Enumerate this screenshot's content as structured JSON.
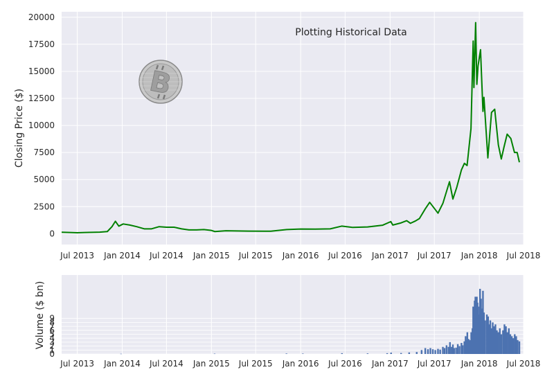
{
  "chart_data": [
    {
      "type": "line",
      "annotation": "Plotting Historical Data",
      "xlabel": "",
      "ylabel": "Closing Price ($)",
      "xlim": [
        "2013-04-28",
        "2018-07-01"
      ],
      "ylim": [
        -1000,
        20500
      ],
      "yticks": [
        0,
        2500,
        5000,
        7500,
        10000,
        12500,
        15000,
        17500,
        20000
      ],
      "xticks": [
        {
          "date": "2013-07-01",
          "label": "Jul 2013"
        },
        {
          "date": "2014-01-01",
          "label": "Jan 2014"
        },
        {
          "date": "2014-07-01",
          "label": "Jul 2014"
        },
        {
          "date": "2015-01-01",
          "label": "Jan 2015"
        },
        {
          "date": "2015-07-01",
          "label": "Jul 2015"
        },
        {
          "date": "2016-01-01",
          "label": "Jan 2016"
        },
        {
          "date": "2016-07-01",
          "label": "Jul 2016"
        },
        {
          "date": "2017-01-01",
          "label": "Jan 2017"
        },
        {
          "date": "2017-07-01",
          "label": "Jul 2017"
        },
        {
          "date": "2018-01-01",
          "label": "Jan 2018"
        },
        {
          "date": "2018-07-01",
          "label": "Jul 2018"
        }
      ],
      "grid": true,
      "line_color": "#008000",
      "background": "#EAEAF2",
      "logo": "bitcoin-coin-icon",
      "series": [
        {
          "x": [
            "2013-04-28",
            "2013-06-01",
            "2013-07-01",
            "2013-08-01",
            "2013-09-01",
            "2013-10-01",
            "2013-11-01",
            "2013-11-20",
            "2013-12-04",
            "2013-12-18",
            "2014-01-05",
            "2014-02-01",
            "2014-03-01",
            "2014-04-01",
            "2014-05-01",
            "2014-06-01",
            "2014-07-01",
            "2014-08-01",
            "2014-09-01",
            "2014-10-01",
            "2014-11-01",
            "2014-12-01",
            "2015-01-01",
            "2015-01-15",
            "2015-03-01",
            "2015-06-01",
            "2015-09-01",
            "2015-11-05",
            "2016-01-01",
            "2016-03-01",
            "2016-05-01",
            "2016-06-17",
            "2016-08-01",
            "2016-10-01",
            "2016-12-01",
            "2017-01-04",
            "2017-01-12",
            "2017-02-15",
            "2017-03-10",
            "2017-03-25",
            "2017-04-15",
            "2017-05-01",
            "2017-05-25",
            "2017-06-12",
            "2017-07-16",
            "2017-08-05",
            "2017-09-01",
            "2017-09-15",
            "2017-10-01",
            "2017-10-20",
            "2017-11-01",
            "2017-11-12",
            "2017-11-28",
            "2017-12-07",
            "2017-12-10",
            "2017-12-17",
            "2017-12-22",
            "2017-12-27",
            "2018-01-06",
            "2018-01-16",
            "2018-01-20",
            "2018-02-05",
            "2018-02-20",
            "2018-03-05",
            "2018-03-20",
            "2018-04-01",
            "2018-04-12",
            "2018-04-25",
            "2018-05-10",
            "2018-05-25",
            "2018-06-05",
            "2018-06-14"
          ],
          "values": [
            135,
            110,
            90,
            110,
            130,
            140,
            200,
            650,
            1150,
            700,
            900,
            800,
            650,
            450,
            450,
            650,
            600,
            600,
            450,
            350,
            350,
            380,
            300,
            200,
            270,
            240,
            230,
            380,
            430,
            420,
            450,
            700,
            580,
            620,
            780,
            1120,
            800,
            1000,
            1200,
            960,
            1180,
            1400,
            2300,
            2900,
            1900,
            2800,
            4800,
            3200,
            4300,
            5900,
            6500,
            6300,
            9700,
            17800,
            13500,
            19500,
            13800,
            15500,
            17000,
            11300,
            12600,
            7000,
            11200,
            11500,
            8200,
            6900,
            8000,
            9200,
            8800,
            7500,
            7500,
            6600
          ]
        }
      ]
    },
    {
      "type": "bar",
      "xlabel": "",
      "ylabel": "Volume ($ bn)",
      "ylim": [
        0,
        20
      ],
      "yticks": [
        0,
        1,
        2,
        3,
        4,
        5,
        6,
        7,
        8,
        9
      ],
      "ytick_labels": [
        "0",
        "1",
        "2",
        "3",
        "4",
        "5",
        "6",
        "7",
        "8",
        "9"
      ],
      "xticks": [
        {
          "date": "2013-07-01",
          "label": "Jul 2013"
        },
        {
          "date": "2014-01-01",
          "label": "Jan 2014"
        },
        {
          "date": "2014-07-01",
          "label": "Jul 2014"
        },
        {
          "date": "2015-01-01",
          "label": "Jan 2015"
        },
        {
          "date": "2015-07-01",
          "label": "Jul 2015"
        },
        {
          "date": "2016-01-01",
          "label": "Jan 2016"
        },
        {
          "date": "2016-07-01",
          "label": "Jul 2016"
        },
        {
          "date": "2017-01-01",
          "label": "Jan 2017"
        },
        {
          "date": "2017-07-01",
          "label": "Jul 2017"
        },
        {
          "date": "2018-01-01",
          "label": "Jan 2018"
        },
        {
          "date": "2018-07-01",
          "label": "Jul 2018"
        }
      ],
      "grid": true,
      "bar_color": "#4C72B0",
      "background": "#EAEAF2",
      "series": [
        {
          "x": [
            "2013-12-27",
            "2015-01-14",
            "2015-11-04",
            "2016-01-10",
            "2016-06-18",
            "2016-10-01",
            "2016-12-20",
            "2017-01-05",
            "2017-02-15",
            "2017-03-20",
            "2017-04-20",
            "2017-05-10",
            "2017-05-25",
            "2017-06-05",
            "2017-06-15",
            "2017-06-25",
            "2017-07-05",
            "2017-07-16",
            "2017-07-25",
            "2017-08-05",
            "2017-08-12",
            "2017-08-20",
            "2017-08-28",
            "2017-09-03",
            "2017-09-10",
            "2017-09-15",
            "2017-09-20",
            "2017-09-28",
            "2017-10-05",
            "2017-10-12",
            "2017-10-20",
            "2017-10-25",
            "2017-11-01",
            "2017-11-06",
            "2017-11-10",
            "2017-11-13",
            "2017-11-18",
            "2017-11-23",
            "2017-11-29",
            "2017-12-04",
            "2017-12-07",
            "2017-12-10",
            "2017-12-13",
            "2017-12-16",
            "2017-12-19",
            "2017-12-22",
            "2017-12-25",
            "2017-12-28",
            "2018-01-01",
            "2018-01-04",
            "2018-01-08",
            "2018-01-12",
            "2018-01-16",
            "2018-01-20",
            "2018-01-25",
            "2018-02-01",
            "2018-02-06",
            "2018-02-10",
            "2018-02-15",
            "2018-02-20",
            "2018-02-25",
            "2018-03-02",
            "2018-03-08",
            "2018-03-14",
            "2018-03-20",
            "2018-03-26",
            "2018-04-01",
            "2018-04-08",
            "2018-04-14",
            "2018-04-20",
            "2018-04-26",
            "2018-05-02",
            "2018-05-08",
            "2018-05-14",
            "2018-05-20",
            "2018-05-26",
            "2018-06-01",
            "2018-06-07",
            "2018-06-14"
          ],
          "values": [
            0.05,
            0.08,
            0.12,
            0.1,
            0.2,
            0.15,
            0.2,
            0.35,
            0.25,
            0.4,
            0.5,
            1.0,
            1.5,
            1.2,
            1.5,
            1.2,
            1.0,
            1.3,
            1.1,
            1.8,
            1.5,
            2.2,
            1.8,
            3.0,
            1.8,
            2.4,
            1.5,
            1.6,
            2.5,
            2.0,
            2.8,
            2.2,
            3.2,
            4.5,
            3.5,
            5.5,
            3.8,
            3.5,
            5.5,
            6.5,
            12.0,
            10.0,
            13.5,
            14.5,
            12.0,
            14.5,
            13.0,
            12.0,
            10.0,
            16.5,
            14.0,
            11.5,
            16.0,
            10.5,
            8.5,
            10.0,
            9.5,
            7.5,
            8.5,
            6.5,
            8.0,
            7.0,
            7.5,
            6.0,
            5.5,
            6.5,
            5.0,
            6.0,
            7.5,
            7.0,
            5.5,
            6.5,
            5.0,
            4.5,
            4.0,
            5.0,
            4.5,
            3.5,
            3.2
          ]
        }
      ]
    }
  ]
}
